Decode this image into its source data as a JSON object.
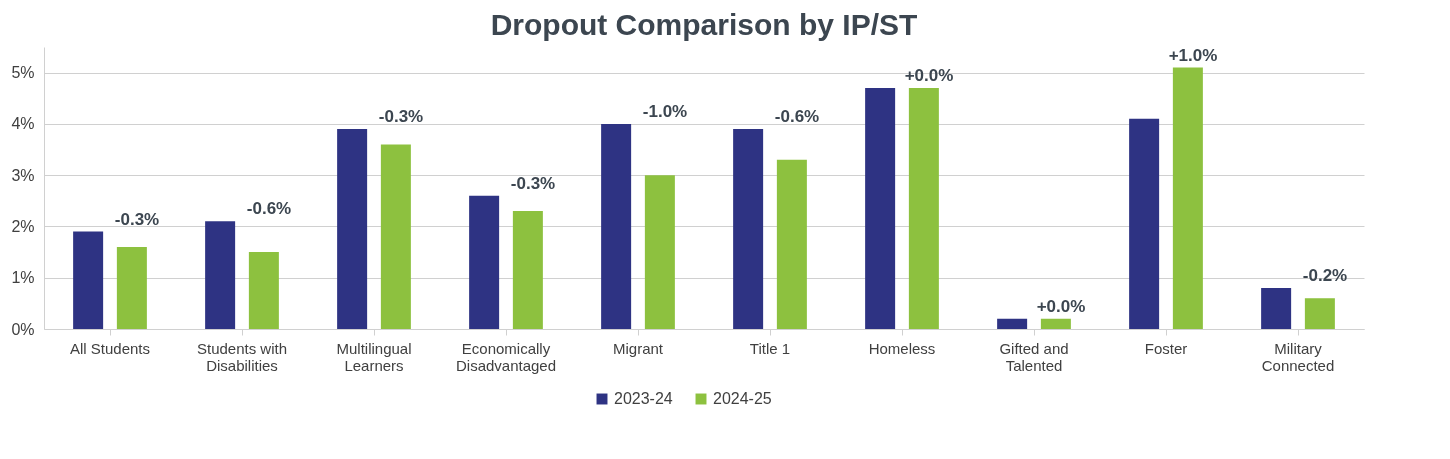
{
  "chart_data": {
    "type": "bar",
    "title": "Dropout Comparison by IP/ST",
    "categories": [
      "All Students",
      "Students with Disabilities",
      "Multilingual Learners",
      "Economically Disadvantaged",
      "Migrant",
      "Title 1",
      "Homeless",
      "Gifted and Talented",
      "Foster",
      "Military Connected"
    ],
    "series": [
      {
        "name": "2023-24",
        "color": "#2e3383",
        "values": [
          1.9,
          2.1,
          3.9,
          2.6,
          4.0,
          3.9,
          4.7,
          0.2,
          4.1,
          0.8
        ]
      },
      {
        "name": "2024-25",
        "color": "#8dc13f",
        "values": [
          1.6,
          1.5,
          3.6,
          2.3,
          3.0,
          3.3,
          4.7,
          0.2,
          5.1,
          0.6
        ]
      }
    ],
    "annotations": [
      "-0.3%",
      "-0.6%",
      "-0.3%",
      "-0.3%",
      "-1.0%",
      "-0.6%",
      "+0.0%",
      "+0.0%",
      "+1.0%",
      "-0.2%"
    ],
    "ylim": [
      0,
      5.5
    ],
    "yticks": [
      {
        "value": 0,
        "label": "0%"
      },
      {
        "value": 1,
        "label": "1%"
      },
      {
        "value": 2,
        "label": "2%"
      },
      {
        "value": 3,
        "label": "3%"
      },
      {
        "value": 4,
        "label": "4%"
      },
      {
        "value": 5,
        "label": "5%"
      }
    ],
    "grid": "y",
    "legend": "bottom"
  }
}
